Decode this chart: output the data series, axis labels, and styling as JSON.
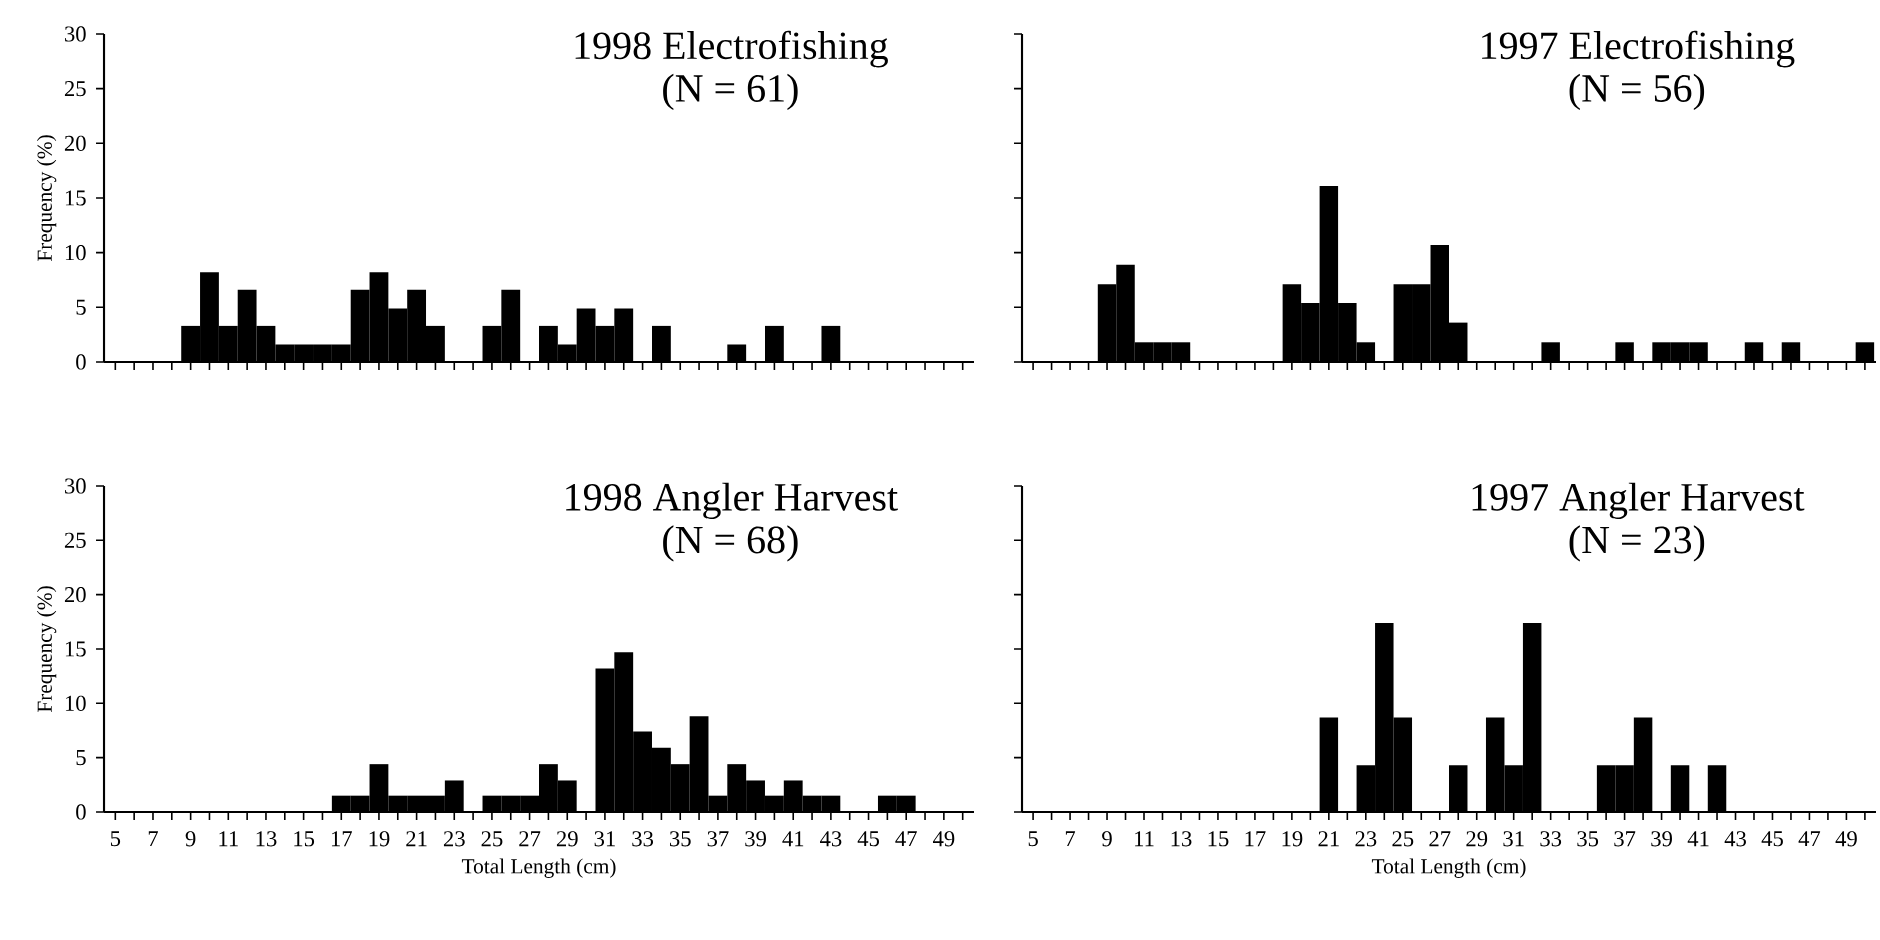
{
  "chart_data": [
    {
      "type": "bar",
      "title": "1998 Electrofishing",
      "subtitle": "(N = 61)",
      "ylabel": "Frequency (%)",
      "color": "#000000",
      "ylim": [
        0,
        30
      ],
      "yticks": [
        0,
        5,
        10,
        15,
        20,
        25,
        30
      ],
      "tick_labels": "y",
      "categories": [
        "5",
        null,
        "7",
        null,
        "9",
        null,
        "11",
        null,
        "13",
        null,
        "15",
        null,
        "17",
        null,
        "19",
        null,
        "21",
        null,
        "23",
        null,
        "25",
        null,
        "27",
        null,
        "29",
        null,
        "31",
        null,
        "33",
        null,
        "35",
        null,
        "37",
        null,
        "39",
        null,
        "41",
        null,
        "43",
        null,
        "45",
        null,
        "47",
        null,
        "49",
        null
      ],
      "values": [
        0,
        0,
        0,
        0,
        3.3,
        8.2,
        3.3,
        6.6,
        3.3,
        1.6,
        1.6,
        1.6,
        1.6,
        6.6,
        8.2,
        4.9,
        6.6,
        3.3,
        0,
        0,
        3.3,
        6.6,
        0,
        3.3,
        1.6,
        4.9,
        3.3,
        4.9,
        0,
        3.3,
        0,
        0,
        0,
        1.6,
        0,
        3.3,
        0,
        0,
        3.3,
        0,
        0,
        0,
        0,
        0,
        0,
        0
      ]
    },
    {
      "type": "bar",
      "title": "1997 Electrofishing",
      "subtitle": "(N = 56)",
      "color": "#000000",
      "ylim": [
        0,
        30
      ],
      "yticks": [
        {
          "value": 0,
          "label": null
        },
        {
          "value": 5,
          "label": null
        },
        {
          "value": 10,
          "label": null
        },
        {
          "value": 15,
          "label": null
        },
        {
          "value": 20,
          "label": null
        },
        {
          "value": 25,
          "label": null
        },
        {
          "value": 30,
          "label": null
        }
      ],
      "tick_labels": false,
      "categories": [
        "5",
        null,
        "7",
        null,
        "9",
        null,
        "11",
        null,
        "13",
        null,
        "15",
        null,
        "17",
        null,
        "19",
        null,
        "21",
        null,
        "23",
        null,
        "25",
        null,
        "27",
        null,
        "29",
        null,
        "31",
        null,
        "33",
        null,
        "35",
        null,
        "37",
        null,
        "39",
        null,
        "41",
        null,
        "43",
        null,
        "45",
        null,
        "47",
        null,
        "49",
        null
      ],
      "values": [
        0,
        0,
        0,
        0,
        7.1,
        8.9,
        1.8,
        1.8,
        1.8,
        0,
        0,
        0,
        0,
        0,
        7.1,
        5.4,
        16.1,
        5.4,
        1.8,
        0,
        7.1,
        7.1,
        10.7,
        3.6,
        0,
        0,
        0,
        0,
        1.8,
        0,
        0,
        0,
        1.8,
        0,
        1.8,
        1.8,
        1.8,
        0,
        0,
        1.8,
        0,
        1.8,
        0,
        0,
        0,
        1.8
      ]
    },
    {
      "type": "bar",
      "title": "1998 Angler Harvest",
      "subtitle": "(N = 68)",
      "ylabel": "Frequency (%)",
      "xlabel": "Total Length (cm)",
      "color": "#000000",
      "ylim": [
        0,
        30
      ],
      "yticks": [
        0,
        5,
        10,
        15,
        20,
        25,
        30
      ],
      "categories": [
        "5",
        null,
        "7",
        null,
        "9",
        null,
        "11",
        null,
        "13",
        null,
        "15",
        null,
        "17",
        null,
        "19",
        null,
        "21",
        null,
        "23",
        null,
        "25",
        null,
        "27",
        null,
        "29",
        null,
        "31",
        null,
        "33",
        null,
        "35",
        null,
        "37",
        null,
        "39",
        null,
        "41",
        null,
        "43",
        null,
        "45",
        null,
        "47",
        null,
        "49",
        null
      ],
      "values": [
        0,
        0,
        0,
        0,
        0,
        0,
        0,
        0,
        0,
        0,
        0,
        0,
        1.5,
        1.5,
        4.4,
        1.5,
        1.5,
        1.5,
        2.9,
        0,
        1.5,
        1.5,
        1.5,
        4.4,
        2.9,
        0,
        13.2,
        14.7,
        7.4,
        5.9,
        4.4,
        8.8,
        1.5,
        4.4,
        2.9,
        1.5,
        2.9,
        1.5,
        1.5,
        0,
        0,
        1.5,
        1.5,
        0,
        0,
        0
      ]
    },
    {
      "type": "bar",
      "title": "1997 Angler Harvest",
      "subtitle": "(N = 23)",
      "xlabel": "Total Length (cm)",
      "color": "#000000",
      "ylim": [
        0,
        30
      ],
      "yticks": [
        {
          "value": 0,
          "label": null
        },
        {
          "value": 5,
          "label": null
        },
        {
          "value": 10,
          "label": null
        },
        {
          "value": 15,
          "label": null
        },
        {
          "value": 20,
          "label": null
        },
        {
          "value": 25,
          "label": null
        },
        {
          "value": 30,
          "label": null
        }
      ],
      "tick_labels": "x",
      "categories": [
        "5",
        null,
        "7",
        null,
        "9",
        null,
        "11",
        null,
        "13",
        null,
        "15",
        null,
        "17",
        null,
        "19",
        null,
        "21",
        null,
        "23",
        null,
        "25",
        null,
        "27",
        null,
        "29",
        null,
        "31",
        null,
        "33",
        null,
        "35",
        null,
        "37",
        null,
        "39",
        null,
        "41",
        null,
        "43",
        null,
        "45",
        null,
        "47",
        null,
        "49",
        null
      ],
      "values": [
        0,
        0,
        0,
        0,
        0,
        0,
        0,
        0,
        0,
        0,
        0,
        0,
        0,
        0,
        0,
        0,
        8.7,
        0,
        4.3,
        17.4,
        8.7,
        0,
        0,
        4.3,
        0,
        8.7,
        4.3,
        17.4,
        0,
        0,
        0,
        4.3,
        4.3,
        8.7,
        0,
        4.3,
        0,
        4.3,
        0,
        0,
        0,
        0,
        0,
        0,
        0,
        0
      ]
    }
  ]
}
